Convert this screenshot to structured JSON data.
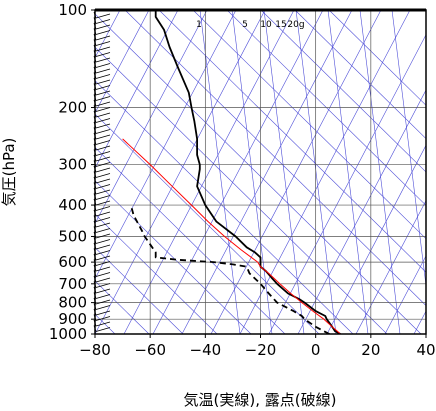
{
  "chart_data": {
    "type": "line",
    "subtype": "skew-T log-P thermodynamic diagram",
    "title": "",
    "xlabel": "気温(実線), 露点(破線)",
    "ylabel": "気圧(hPa)",
    "xlim": [
      -80,
      40
    ],
    "ylim": [
      1000,
      100
    ],
    "y_scale": "log",
    "x_ticks": [
      "−80",
      "−60",
      "−40",
      "−20",
      "0",
      "20",
      "40"
    ],
    "x_tick_values": [
      -80,
      -60,
      -40,
      -20,
      0,
      20,
      40
    ],
    "y_ticks": [
      "100",
      "200",
      "300",
      "400",
      "500",
      "600",
      "700",
      "800",
      "900",
      "1000"
    ],
    "y_tick_values": [
      100,
      200,
      300,
      400,
      500,
      600,
      700,
      800,
      900,
      1000
    ],
    "mixing_ratio_labels": [
      "1",
      "5",
      "10",
      "15",
      "20g"
    ],
    "series": [
      {
        "style": "solid",
        "color": "#000000",
        "points": [
          [
            1000,
            9
          ],
          [
            980,
            7
          ],
          [
            950,
            6
          ],
          [
            925,
            5
          ],
          [
            900,
            4
          ],
          [
            880,
            3.5
          ],
          [
            850,
            0
          ],
          [
            800,
            -4
          ],
          [
            780,
            -6
          ],
          [
            750,
            -10
          ],
          [
            700,
            -14
          ],
          [
            670,
            -16
          ],
          [
            640,
            -18
          ],
          [
            620,
            -20
          ],
          [
            600,
            -20
          ],
          [
            580,
            -20
          ],
          [
            560,
            -22
          ],
          [
            540,
            -25
          ],
          [
            500,
            -29
          ],
          [
            450,
            -36
          ],
          [
            400,
            -40
          ],
          [
            350,
            -43
          ],
          [
            310,
            -42
          ],
          [
            300,
            -42
          ],
          [
            280,
            -43
          ],
          [
            250,
            -43
          ],
          [
            220,
            -44
          ],
          [
            200,
            -45
          ],
          [
            180,
            -46
          ],
          [
            150,
            -50
          ],
          [
            130,
            -53
          ],
          [
            115,
            -55
          ],
          [
            105,
            -58
          ],
          [
            100,
            -58
          ]
        ]
      },
      {
        "style": "dashed",
        "color": "#000000",
        "points": [
          [
            1000,
            5
          ],
          [
            980,
            3
          ],
          [
            950,
            0
          ],
          [
            925,
            -2
          ],
          [
            900,
            -4
          ],
          [
            880,
            -5
          ],
          [
            850,
            -8
          ],
          [
            800,
            -14
          ],
          [
            750,
            -17
          ],
          [
            700,
            -20
          ],
          [
            650,
            -24
          ],
          [
            620,
            -25
          ],
          [
            610,
            -30
          ],
          [
            600,
            -37
          ],
          [
            590,
            -50
          ],
          [
            580,
            -58
          ],
          [
            560,
            -58
          ],
          [
            500,
            -62
          ],
          [
            480,
            -63
          ],
          [
            430,
            -66
          ],
          [
            400,
            -67
          ]
        ]
      },
      {
        "style": "solid",
        "color": "#ff0000",
        "points": [
          [
            1000,
            9
          ],
          [
            950,
            6
          ],
          [
            900,
            3
          ],
          [
            850,
            -1
          ],
          [
            800,
            -5
          ],
          [
            750,
            -9
          ],
          [
            700,
            -13
          ],
          [
            650,
            -17
          ],
          [
            620,
            -20
          ],
          [
            600,
            -21
          ],
          [
            550,
            -27
          ],
          [
            500,
            -33
          ],
          [
            450,
            -39
          ],
          [
            400,
            -45
          ],
          [
            350,
            -52
          ],
          [
            300,
            -60
          ],
          [
            250,
            -70
          ]
        ]
      }
    ],
    "grid": true,
    "background_lines_color": "#4f4fd8",
    "wind_barbs": true
  }
}
